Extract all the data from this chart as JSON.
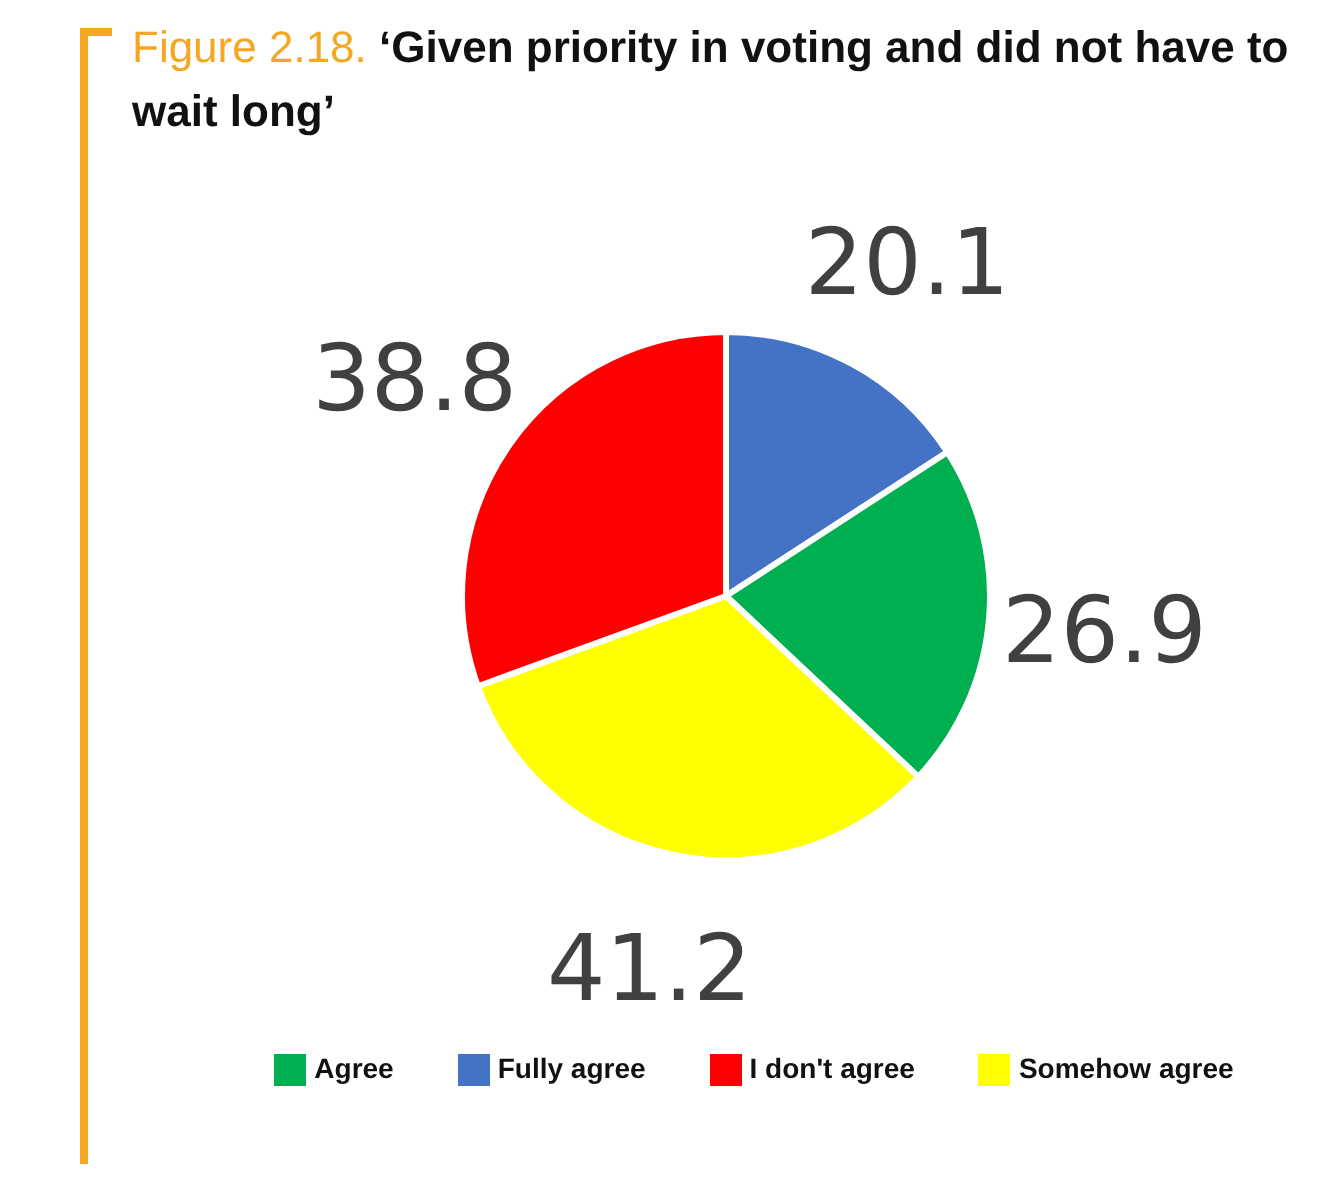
{
  "chart_data": {
    "type": "pie",
    "title": "Figure 2.18.",
    "subtitle": "‘Given priority in voting and did not have to wait long’",
    "categories": [
      "Fully agree",
      "Agree",
      "Somehow agree",
      "I don't agree"
    ],
    "values": [
      20.1,
      26.9,
      41.2,
      38.8
    ],
    "colors": [
      "#4472c4",
      "#00b050",
      "#ffff00",
      "#ff0000"
    ],
    "data_labels": true,
    "legend": "bottom"
  }
}
